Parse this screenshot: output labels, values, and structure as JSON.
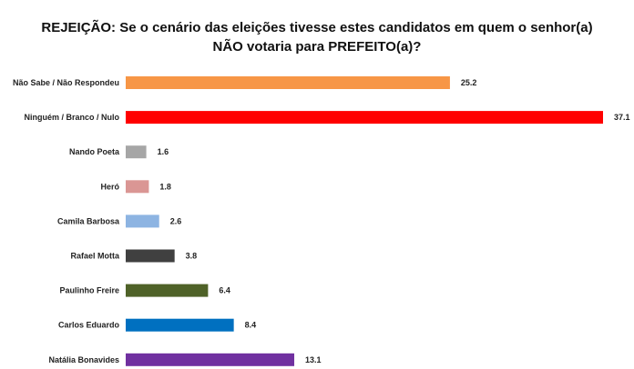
{
  "chart_data": {
    "type": "bar",
    "orientation": "horizontal",
    "title_lines": [
      "REJEIÇÃO: Se o cenário das eleições tivesse estes candidatos em quem o senhor(a)",
      "NÃO votaria para PREFEITO(a)?"
    ],
    "categories": [
      "Não Sabe / Não Respondeu",
      "Ninguém / Branco / Nulo",
      "Nando Poeta",
      "Heró",
      "Camila Barbosa",
      "Rafael Motta",
      "Paulinho Freire",
      "Carlos Eduardo",
      "Natália Bonavides"
    ],
    "values": [
      25.2,
      37.1,
      1.6,
      1.8,
      2.6,
      3.8,
      6.4,
      8.4,
      13.1
    ],
    "value_labels": [
      "25.2",
      "37.1",
      "1.6",
      "1.8",
      "2.6",
      "3.8",
      "6.4",
      "8.4",
      "13.1"
    ],
    "colors": [
      "#F79646",
      "#FF0000",
      "#A6A6A6",
      "#DA9694",
      "#8DB4E2",
      "#404040",
      "#4F6228",
      "#0070C0",
      "#7030A0"
    ],
    "xlabel": "",
    "ylabel": "",
    "grid": false,
    "legend": "none"
  }
}
